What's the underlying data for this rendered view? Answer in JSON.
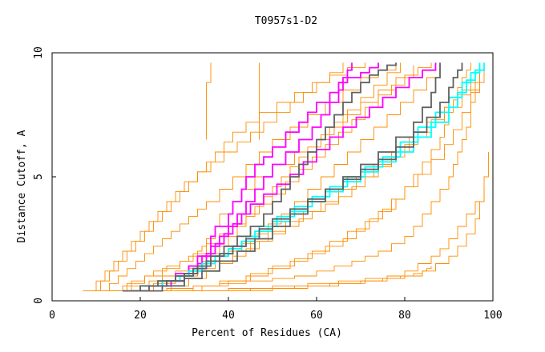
{
  "chart_data": {
    "type": "line",
    "title": "T0957s1-D2",
    "xlabel": "Percent of Residues (CA)",
    "ylabel": "Distance Cutoff, A",
    "xlim": [
      0,
      100
    ],
    "ylim": [
      0,
      10
    ],
    "x_ticks": [
      0,
      20,
      40,
      60,
      80,
      100
    ],
    "y_ticks": [
      0,
      5,
      10
    ],
    "grid": false,
    "legend": "none",
    "colors": {
      "orange": "#ff8c00",
      "magenta": "#ff00ff",
      "cyan": "#00ffff",
      "gray": "#606060"
    },
    "series": [
      {
        "color": "#ff8c00",
        "x": [
          12,
          16,
          18,
          21,
          23,
          26,
          29,
          31,
          33,
          34,
          35,
          37,
          38,
          41,
          43,
          46,
          50,
          55,
          60,
          63,
          66,
          70,
          74,
          78,
          82
        ],
        "y": [
          0.4,
          0.6,
          0.8,
          1.0,
          1.2,
          1.4,
          1.6,
          1.8,
          2.0,
          2.2,
          2.5,
          3.0,
          3.5,
          4.0,
          4.5,
          5.0,
          5.5,
          6.0,
          6.5,
          7.0,
          7.5,
          8.0,
          8.5,
          9.0,
          9.5
        ]
      },
      {
        "color": "#ff8c00",
        "x": [
          14,
          18,
          22,
          25,
          28,
          31,
          34,
          37,
          40,
          43,
          46,
          49,
          52,
          55,
          58,
          61,
          64,
          67,
          70,
          73,
          76,
          79,
          82,
          85,
          88
        ],
        "y": [
          0.4,
          0.6,
          0.8,
          1.0,
          1.2,
          1.4,
          1.6,
          1.8,
          2.0,
          2.3,
          2.7,
          3.1,
          3.5,
          4.0,
          4.5,
          5.0,
          5.5,
          6.0,
          6.5,
          7.0,
          7.5,
          8.0,
          8.5,
          9.0,
          9.5
        ]
      },
      {
        "color": "#ff8c00",
        "x": [
          10,
          13,
          15,
          17,
          19,
          21,
          23,
          25,
          27,
          29,
          31,
          33,
          35,
          38,
          41,
          44,
          47,
          50,
          54,
          58,
          62,
          66,
          70,
          74,
          78
        ],
        "y": [
          0.4,
          0.7,
          1.0,
          1.3,
          1.6,
          1.9,
          2.2,
          2.5,
          2.8,
          3.1,
          3.4,
          3.7,
          4.0,
          4.5,
          5.0,
          5.5,
          6.0,
          6.5,
          7.0,
          7.5,
          8.0,
          8.5,
          9.0,
          9.3,
          9.6
        ]
      },
      {
        "color": "#ff8c00",
        "x": [
          20,
          26,
          32,
          38,
          44,
          50,
          55,
          60,
          64,
          68,
          71,
          74,
          77,
          80,
          82,
          84,
          86,
          88,
          90,
          91,
          92,
          93,
          94,
          95,
          96
        ],
        "y": [
          0.4,
          0.5,
          0.6,
          0.7,
          0.8,
          0.9,
          1.0,
          1.2,
          1.4,
          1.6,
          1.8,
          2.0,
          2.3,
          2.6,
          3.0,
          3.5,
          4.0,
          4.5,
          5.0,
          5.5,
          6.0,
          6.5,
          7.0,
          8.0,
          9.0
        ]
      },
      {
        "color": "#ff8c00",
        "x": [
          30,
          40,
          50,
          58,
          65,
          71,
          76,
          80,
          83,
          86,
          88,
          90,
          92,
          94,
          96,
          98
        ],
        "y": [
          0.4,
          0.5,
          0.6,
          0.7,
          0.8,
          0.9,
          1.0,
          1.2,
          1.5,
          1.8,
          2.1,
          2.5,
          3.0,
          3.5,
          4.0,
          4.5
        ]
      },
      {
        "color": "#ff8c00",
        "x": [
          36,
          36,
          36,
          35,
          35,
          35,
          35
        ],
        "y": [
          9.6,
          9.2,
          8.8,
          8.4,
          7.6,
          7.0,
          6.5
        ]
      },
      {
        "color": "#ff8c00",
        "x": [
          47,
          47,
          47
        ],
        "y": [
          9.6,
          8.0,
          6.5
        ]
      },
      {
        "color": "#ff8c00",
        "x": [
          16,
          20,
          24,
          28,
          31,
          34,
          36,
          38,
          40,
          42,
          44,
          46,
          48,
          50,
          52,
          54,
          56,
          58,
          61,
          64,
          67,
          70,
          73,
          76,
          79
        ],
        "y": [
          0.4,
          0.6,
          0.8,
          1.0,
          1.3,
          1.6,
          1.9,
          2.2,
          2.6,
          3.0,
          3.4,
          3.8,
          4.2,
          4.6,
          5.0,
          5.4,
          5.8,
          6.2,
          6.7,
          7.2,
          7.7,
          8.2,
          8.7,
          9.2,
          9.6
        ]
      },
      {
        "color": "#ff8c00",
        "x": [
          22,
          27,
          31,
          35,
          38,
          41,
          44,
          47,
          50,
          53,
          56,
          59,
          62,
          65,
          68,
          71,
          74,
          77,
          80,
          83,
          86,
          89,
          92,
          95,
          98
        ],
        "y": [
          0.4,
          0.6,
          0.9,
          1.2,
          1.5,
          1.8,
          2.1,
          2.4,
          2.7,
          3.0,
          3.3,
          3.6,
          3.9,
          4.2,
          4.6,
          5.0,
          5.4,
          5.8,
          6.3,
          6.8,
          7.3,
          7.8,
          8.3,
          8.8,
          9.4
        ]
      },
      {
        "color": "#ff8c00",
        "x": [
          9,
          11,
          13,
          15,
          17,
          19,
          21,
          23,
          25,
          27,
          29,
          31,
          33,
          35,
          37,
          39,
          41,
          44,
          47,
          51,
          55,
          59,
          63,
          67,
          71
        ],
        "y": [
          0.4,
          0.8,
          1.2,
          1.6,
          2.0,
          2.4,
          2.8,
          3.2,
          3.6,
          4.0,
          4.4,
          4.8,
          5.2,
          5.6,
          6.0,
          6.4,
          6.8,
          7.2,
          7.6,
          8.0,
          8.4,
          8.8,
          9.1,
          9.4,
          9.6
        ]
      },
      {
        "color": "#ff8c00",
        "x": [
          25,
          32,
          38,
          44,
          49,
          54,
          58,
          62,
          66,
          69,
          72,
          75,
          78,
          80,
          82,
          84,
          86,
          88,
          89,
          90,
          91,
          92,
          93,
          94,
          95
        ],
        "y": [
          0.4,
          0.6,
          0.8,
          1.0,
          1.3,
          1.6,
          1.9,
          2.2,
          2.5,
          2.9,
          3.3,
          3.7,
          4.1,
          4.6,
          5.1,
          5.6,
          6.1,
          6.6,
          7.1,
          7.6,
          8.1,
          8.6,
          9.0,
          9.3,
          9.6
        ]
      },
      {
        "color": "#ff8c00",
        "x": [
          18,
          23,
          28,
          33,
          37,
          41,
          45,
          49,
          53,
          57,
          61,
          65,
          69,
          73,
          77,
          81,
          85,
          89,
          93,
          97
        ],
        "y": [
          0.4,
          0.7,
          1.0,
          1.3,
          1.6,
          2.0,
          2.4,
          2.8,
          3.2,
          3.6,
          4.0,
          4.5,
          5.0,
          5.5,
          6.0,
          6.6,
          7.2,
          7.8,
          8.5,
          9.2
        ]
      },
      {
        "color": "#ff8c00",
        "x": [
          7,
          10,
          12,
          14,
          16,
          18,
          20,
          22,
          24,
          26,
          28,
          30,
          33,
          36,
          39,
          42,
          45,
          48,
          51,
          54,
          57,
          60,
          63,
          66
        ],
        "y": [
          0.4,
          0.8,
          1.2,
          1.6,
          2.0,
          2.4,
          2.8,
          3.2,
          3.6,
          4.0,
          4.4,
          4.8,
          5.2,
          5.6,
          6.0,
          6.4,
          6.8,
          7.2,
          7.6,
          8.0,
          8.4,
          8.8,
          9.2,
          9.6
        ]
      },
      {
        "color": "#ff8c00",
        "x": [
          40,
          50,
          58,
          65,
          71,
          76,
          80,
          84,
          87,
          90,
          92,
          94,
          96,
          97,
          98,
          99
        ],
        "y": [
          0.4,
          0.5,
          0.6,
          0.7,
          0.8,
          0.9,
          1.0,
          1.2,
          1.5,
          1.8,
          2.2,
          2.7,
          3.3,
          4.0,
          5.0,
          6.0
        ]
      },
      {
        "color": "#ff8c00",
        "x": [
          28,
          34,
          40,
          45,
          50,
          55,
          59,
          63,
          67,
          71,
          74,
          77,
          80,
          83,
          86,
          89,
          91,
          93,
          95,
          97
        ],
        "y": [
          0.4,
          0.6,
          0.8,
          1.1,
          1.4,
          1.7,
          2.0,
          2.4,
          2.8,
          3.2,
          3.6,
          4.1,
          4.6,
          5.1,
          5.7,
          6.3,
          6.9,
          7.6,
          8.4,
          9.2
        ]
      },
      {
        "color": "#ff8c00",
        "x": [
          13,
          17,
          21,
          25,
          29,
          32,
          35,
          38,
          41,
          44,
          47,
          50,
          53,
          56,
          59,
          62,
          65,
          68,
          71,
          74,
          77,
          80,
          83,
          86
        ],
        "y": [
          0.4,
          0.7,
          1.0,
          1.3,
          1.6,
          1.9,
          2.3,
          2.7,
          3.1,
          3.5,
          3.9,
          4.3,
          4.8,
          5.3,
          5.8,
          6.3,
          6.8,
          7.3,
          7.8,
          8.3,
          8.7,
          9.1,
          9.4,
          9.6
        ]
      },
      {
        "color": "#ff8c00",
        "x": [
          35,
          45,
          55,
          63,
          70,
          75,
          79,
          82,
          84,
          85,
          86
        ],
        "y": [
          0.4,
          0.5,
          0.6,
          0.7,
          0.8,
          0.9,
          1.0,
          1.1,
          1.2,
          1.3,
          1.4
        ]
      },
      {
        "color": "#ff00ff",
        "x": [
          23,
          26,
          30,
          31,
          33,
          36,
          36,
          37,
          40,
          41,
          43,
          44,
          46,
          48,
          50,
          53,
          56,
          58,
          60,
          63,
          65,
          67,
          70,
          72,
          74
        ],
        "y": [
          0.6,
          0.8,
          1.0,
          1.4,
          1.8,
          2.2,
          2.6,
          3.0,
          3.5,
          4.0,
          4.5,
          5.0,
          5.5,
          5.8,
          6.2,
          6.8,
          7.2,
          7.6,
          8.0,
          8.4,
          8.8,
          9.0,
          9.2,
          9.4,
          9.6
        ]
      },
      {
        "color": "#ff00ff",
        "x": [
          22,
          25,
          28,
          31,
          34,
          36,
          38,
          40,
          42,
          44,
          46,
          48,
          50,
          53,
          56,
          59,
          61,
          63,
          65,
          66,
          67,
          68
        ],
        "y": [
          0.6,
          0.8,
          1.1,
          1.4,
          1.8,
          2.2,
          2.6,
          3.0,
          3.5,
          4.0,
          4.5,
          5.0,
          5.5,
          6.0,
          6.5,
          7.0,
          7.5,
          8.0,
          8.5,
          9.0,
          9.3,
          9.6
        ]
      },
      {
        "color": "#ff00ff",
        "x": [
          24,
          27,
          30,
          33,
          35,
          37,
          39,
          41,
          43,
          45,
          48,
          51,
          54,
          57,
          60,
          63,
          66,
          69,
          72,
          75,
          78,
          81,
          84,
          87
        ],
        "y": [
          0.6,
          0.8,
          1.1,
          1.5,
          1.9,
          2.3,
          2.7,
          3.1,
          3.5,
          3.9,
          4.3,
          4.7,
          5.1,
          5.6,
          6.1,
          6.6,
          7.0,
          7.4,
          7.8,
          8.2,
          8.6,
          9.0,
          9.3,
          9.6
        ]
      },
      {
        "color": "#00ffff",
        "x": [
          20,
          24,
          28,
          31,
          34,
          37,
          40,
          43,
          46,
          50,
          54,
          58,
          62,
          66,
          70,
          74,
          78,
          82,
          86,
          90,
          92,
          94,
          96,
          98
        ],
        "y": [
          0.6,
          0.8,
          1.0,
          1.2,
          1.5,
          1.8,
          2.1,
          2.4,
          2.8,
          3.2,
          3.6,
          4.0,
          4.4,
          4.8,
          5.2,
          5.6,
          6.0,
          6.6,
          7.2,
          7.8,
          8.4,
          8.9,
          9.3,
          9.6
        ]
      },
      {
        "color": "#00ffff",
        "x": [
          21,
          25,
          29,
          32,
          35,
          38,
          41,
          44,
          47,
          51,
          55,
          59,
          63,
          67,
          71,
          75,
          79,
          83,
          87,
          90,
          93,
          95,
          97
        ],
        "y": [
          0.6,
          0.8,
          1.0,
          1.3,
          1.6,
          1.9,
          2.2,
          2.6,
          3.0,
          3.4,
          3.8,
          4.2,
          4.6,
          5.0,
          5.4,
          5.8,
          6.4,
          7.0,
          7.6,
          8.2,
          8.8,
          9.2,
          9.6
        ]
      },
      {
        "color": "#606060",
        "x": [
          16,
          20,
          24,
          28,
          32,
          35,
          38,
          41,
          44,
          47,
          50,
          54,
          58,
          62,
          66,
          70,
          74,
          78,
          82,
          85,
          88,
          90,
          91,
          92,
          93
        ],
        "y": [
          0.4,
          0.6,
          0.8,
          1.0,
          1.3,
          1.6,
          1.9,
          2.2,
          2.5,
          2.9,
          3.3,
          3.7,
          4.1,
          4.5,
          4.9,
          5.3,
          5.7,
          6.2,
          6.8,
          7.4,
          8.0,
          8.6,
          9.0,
          9.3,
          9.6
        ]
      },
      {
        "color": "#606060",
        "x": [
          18,
          22,
          26,
          30,
          33,
          36,
          39,
          42,
          45,
          48,
          50,
          52,
          54,
          56,
          58,
          60,
          62,
          64,
          66,
          68,
          70,
          72,
          74,
          76,
          78
        ],
        "y": [
          0.4,
          0.6,
          0.8,
          1.1,
          1.4,
          1.8,
          2.2,
          2.6,
          3.0,
          3.5,
          4.0,
          4.5,
          5.0,
          5.5,
          6.0,
          6.5,
          7.0,
          7.5,
          8.0,
          8.4,
          8.8,
          9.1,
          9.3,
          9.5,
          9.6
        ]
      },
      {
        "color": "#606060",
        "x": [
          20,
          25,
          30,
          34,
          38,
          42,
          46,
          50,
          54,
          58,
          62,
          66,
          70,
          74,
          78,
          82,
          84,
          86,
          87,
          88
        ],
        "y": [
          0.4,
          0.6,
          0.9,
          1.2,
          1.6,
          2.0,
          2.5,
          3.0,
          3.5,
          4.0,
          4.5,
          5.0,
          5.5,
          6.0,
          6.6,
          7.2,
          7.8,
          8.4,
          9.0,
          9.6
        ]
      }
    ]
  }
}
